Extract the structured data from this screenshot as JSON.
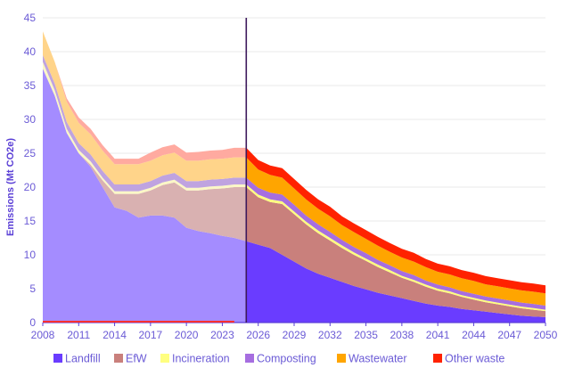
{
  "chart_data": {
    "type": "area",
    "title": "",
    "xlabel": "",
    "ylabel": "Emissions (Mt CO2e)",
    "ylim": [
      0,
      45
    ],
    "yticks": [
      0,
      5,
      10,
      15,
      20,
      25,
      30,
      35,
      40,
      45
    ],
    "xlim": [
      2008,
      2050
    ],
    "xticks": [
      "2008",
      "2011",
      "2014",
      "2017",
      "2020",
      "2023",
      "2026",
      "2029",
      "2032",
      "2035",
      "2038",
      "2041",
      "2044",
      "2047",
      "2050"
    ],
    "divider_year": 2025,
    "x": [
      2008,
      2009,
      2010,
      2011,
      2012,
      2013,
      2014,
      2015,
      2016,
      2017,
      2018,
      2019,
      2020,
      2021,
      2022,
      2023,
      2024,
      2025,
      2026,
      2027,
      2028,
      2029,
      2030,
      2031,
      2032,
      2033,
      2034,
      2035,
      2036,
      2037,
      2038,
      2039,
      2040,
      2041,
      2042,
      2043,
      2044,
      2045,
      2046,
      2047,
      2048,
      2049,
      2050
    ],
    "series": [
      {
        "name": "Landfill",
        "color_hist": "#a48cff",
        "color_proj": "#6a3cff",
        "values": [
          37.5,
          33.5,
          28.0,
          25.0,
          23.0,
          20.0,
          17.0,
          16.5,
          15.5,
          15.8,
          15.8,
          15.5,
          14.0,
          13.5,
          13.2,
          12.8,
          12.5,
          12.0,
          11.5,
          11.0,
          10.0,
          9.0,
          8.0,
          7.2,
          6.6,
          6.0,
          5.4,
          4.9,
          4.4,
          4.0,
          3.6,
          3.2,
          2.8,
          2.5,
          2.3,
          2.0,
          1.8,
          1.6,
          1.4,
          1.2,
          1.0,
          0.9,
          0.8
        ]
      },
      {
        "name": "EfW",
        "color_hist": "#d9b1b1",
        "color_proj": "#c9807c",
        "values": [
          0.0,
          0.0,
          0.0,
          0.0,
          0.3,
          1.0,
          2.0,
          2.5,
          3.5,
          3.7,
          4.5,
          5.2,
          5.5,
          6.0,
          6.5,
          7.0,
          7.5,
          8.0,
          7.0,
          6.8,
          7.5,
          7.0,
          6.5,
          6.0,
          5.5,
          5.0,
          4.6,
          4.2,
          3.8,
          3.4,
          3.0,
          2.8,
          2.5,
          2.2,
          2.0,
          1.8,
          1.6,
          1.4,
          1.3,
          1.2,
          1.1,
          1.0,
          0.9
        ]
      },
      {
        "name": "Incineration",
        "color_hist": "#fbf7c6",
        "color_proj": "#ffff80",
        "values": [
          1.0,
          0.8,
          0.6,
          0.5,
          0.5,
          0.4,
          0.4,
          0.4,
          0.4,
          0.4,
          0.4,
          0.4,
          0.4,
          0.4,
          0.4,
          0.4,
          0.4,
          0.4,
          0.4,
          0.4,
          0.4,
          0.4,
          0.4,
          0.4,
          0.4,
          0.4,
          0.35,
          0.35,
          0.35,
          0.35,
          0.3,
          0.3,
          0.3,
          0.3,
          0.3,
          0.25,
          0.25,
          0.25,
          0.25,
          0.25,
          0.25,
          0.25,
          0.2
        ]
      },
      {
        "name": "Composting",
        "color_hist": "#bfa3e0",
        "color_proj": "#a66ee0",
        "values": [
          1.0,
          1.0,
          1.0,
          1.0,
          1.0,
          1.0,
          1.0,
          1.0,
          1.0,
          1.0,
          1.0,
          1.0,
          1.0,
          1.0,
          1.0,
          1.0,
          1.0,
          1.0,
          1.0,
          1.0,
          1.0,
          1.0,
          0.9,
          0.9,
          0.9,
          0.8,
          0.8,
          0.8,
          0.7,
          0.7,
          0.7,
          0.7,
          0.6,
          0.6,
          0.6,
          0.6,
          0.6,
          0.6,
          0.6,
          0.6,
          0.6,
          0.6,
          0.6
        ]
      },
      {
        "name": "Wastewater",
        "color_hist": "#ffd48a",
        "color_proj": "#ffa500",
        "values": [
          3.5,
          3.2,
          3.0,
          3.0,
          3.0,
          3.0,
          3.0,
          3.0,
          3.0,
          3.0,
          3.0,
          3.0,
          3.0,
          3.0,
          3.0,
          3.0,
          3.0,
          3.0,
          2.7,
          2.6,
          2.5,
          2.4,
          2.4,
          2.3,
          2.3,
          2.2,
          2.2,
          2.1,
          2.1,
          2.0,
          2.0,
          2.0,
          2.0,
          1.9,
          1.9,
          1.9,
          1.9,
          1.8,
          1.8,
          1.8,
          1.8,
          1.8,
          1.8
        ]
      },
      {
        "name": "Other waste",
        "color_hist": "#ffaaa0",
        "color_proj": "#ff2200",
        "values": [
          0.0,
          0.0,
          0.5,
          0.8,
          0.8,
          0.8,
          0.8,
          0.8,
          0.8,
          1.2,
          1.2,
          1.2,
          1.2,
          1.3,
          1.3,
          1.3,
          1.4,
          1.4,
          1.4,
          1.4,
          1.4,
          1.4,
          1.4,
          1.4,
          1.4,
          1.3,
          1.3,
          1.3,
          1.3,
          1.3,
          1.3,
          1.3,
          1.2,
          1.2,
          1.2,
          1.2,
          1.2,
          1.2,
          1.2,
          1.2,
          1.2,
          1.2,
          1.2
        ]
      }
    ],
    "legend": [
      {
        "label": "Landfill",
        "color": "#6a3cff"
      },
      {
        "label": "EfW",
        "color": "#c9807c"
      },
      {
        "label": "Incineration",
        "color": "#ffff80"
      },
      {
        "label": "Composting",
        "color": "#a66ee0"
      },
      {
        "label": "Wastewater",
        "color": "#ffa500"
      },
      {
        "label": "Other waste",
        "color": "#ff2200"
      }
    ],
    "legend_position": "bottom",
    "colors": {
      "axis": "#5a3fd6",
      "divider": "#3d1a5c",
      "baseline_accent": "#ff3030",
      "grid": "#e8e8e8"
    }
  }
}
